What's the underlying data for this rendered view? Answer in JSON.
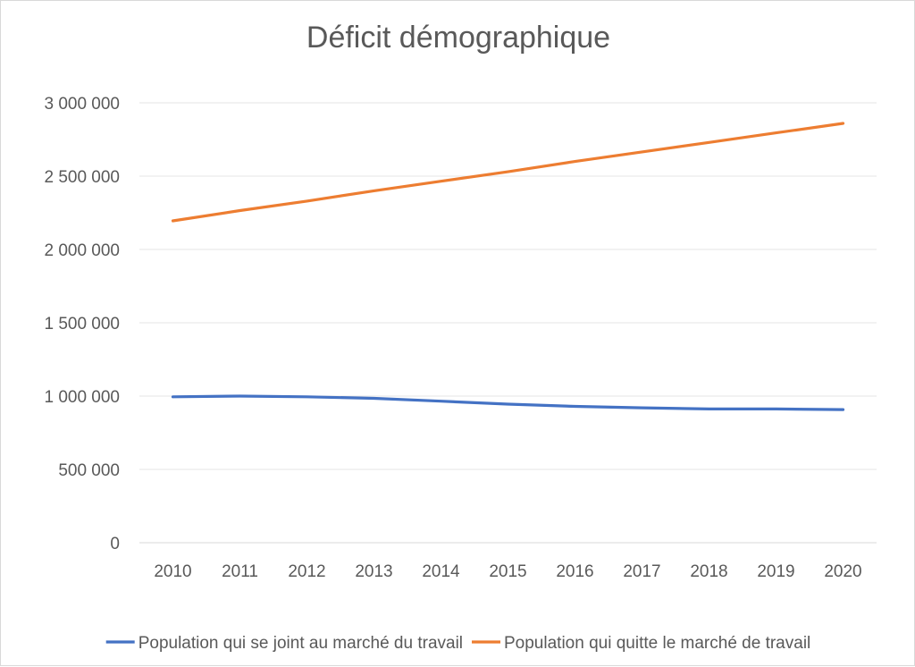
{
  "chart_data": {
    "type": "line",
    "title": "Déficit démographique",
    "xlabel": "",
    "ylabel": "",
    "categories": [
      "2010",
      "2011",
      "2012",
      "2013",
      "2014",
      "2015",
      "2016",
      "2017",
      "2018",
      "2019",
      "2020"
    ],
    "ylim": [
      0,
      3000000
    ],
    "yticks": [
      0,
      500000,
      1000000,
      1500000,
      2000000,
      2500000,
      3000000
    ],
    "ytick_labels": [
      "0",
      "500 000",
      "1 000 000",
      "1 500 000",
      "2 000 000",
      "2 500 000",
      "3 000 000"
    ],
    "grid": true,
    "legend_position": "bottom",
    "series": [
      {
        "name": "Population qui se joint au marché du travail",
        "color": "#4472c4",
        "values": [
          995000,
          1000000,
          995000,
          985000,
          965000,
          945000,
          930000,
          920000,
          912000,
          912000,
          908000
        ]
      },
      {
        "name": "Population qui quitte le marché de travail",
        "color": "#ed7d31",
        "values": [
          2195000,
          2265000,
          2330000,
          2400000,
          2465000,
          2530000,
          2600000,
          2665000,
          2730000,
          2795000,
          2860000
        ]
      }
    ]
  }
}
